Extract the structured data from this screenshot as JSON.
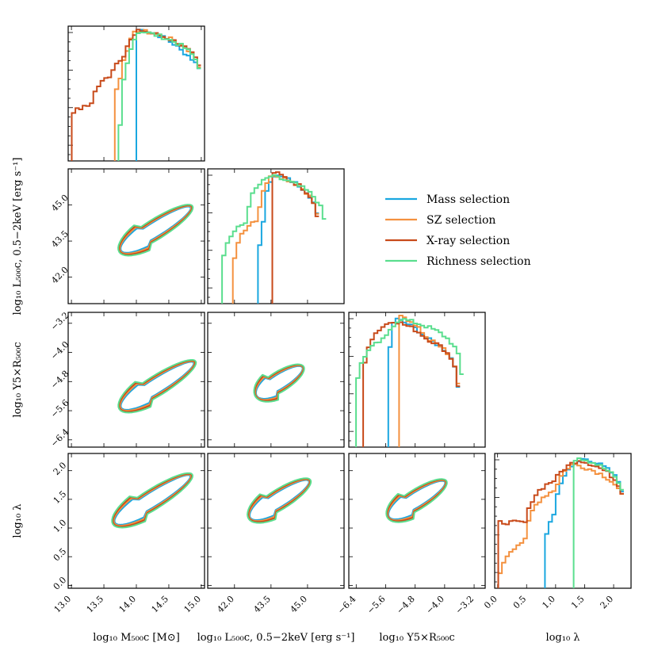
{
  "chart_data": {
    "type": "corner",
    "parameters": [
      {
        "key": "mass",
        "label": "log₁₀ M₅₀₀c [M⊙]",
        "range": [
          12.95,
          15.05
        ],
        "ticks": [
          "13.0",
          "13.5",
          "14.0",
          "14.5",
          "15.0"
        ],
        "tickvals": [
          13.0,
          13.5,
          14.0,
          14.5,
          15.0
        ]
      },
      {
        "key": "lum",
        "label": "log₁₀ L₅₀₀c, 0.5−2keV [erg s⁻¹]",
        "range": [
          40.9,
          46.5
        ],
        "ticks": [
          "42.0",
          "43.5",
          "45.0"
        ],
        "tickvals": [
          42.0,
          43.5,
          45.0
        ]
      },
      {
        "key": "ysz",
        "label": "log₁₀ Y5×R₅₀₀c",
        "range": [
          -6.6,
          -2.9
        ],
        "ticks": [
          "−6.4",
          "−5.6",
          "−4.8",
          "−4.0",
          "−3.2"
        ],
        "tickvals": [
          -6.4,
          -5.6,
          -4.8,
          -4.0,
          -3.2
        ]
      },
      {
        "key": "rich",
        "label": "log₁₀ λ",
        "range": [
          -0.05,
          2.3
        ],
        "ticks": [
          "0.0",
          "0.5",
          "1.0",
          "1.5",
          "2.0"
        ],
        "tickvals": [
          0.0,
          0.5,
          1.0,
          1.5,
          2.0
        ]
      }
    ],
    "series": [
      {
        "name": "Mass selection",
        "color": "#1aa7e0"
      },
      {
        "name": "SZ selection",
        "color": "#f4913f"
      },
      {
        "name": "X-ray selection",
        "color": "#c84a1a"
      },
      {
        "name": "Richness selection",
        "color": "#5ade8e"
      }
    ],
    "legend_position": "upper-right",
    "y_axis_labels": {
      "row1": "log₁₀ L₅₀₀c, 0.5−2keV [erg s⁻¹]",
      "row2": "log₁₀ Y5×R₅₀₀c",
      "row3": "log₁₀ λ"
    },
    "marginal_histograms": {
      "mass": {
        "note": "log-scaled counts, relative to peak",
        "Mass selection": [
          [
            14.0,
            1.0
          ],
          [
            14.1,
            0.95
          ],
          [
            14.3,
            0.72
          ],
          [
            14.5,
            0.45
          ],
          [
            14.7,
            0.22
          ],
          [
            14.9,
            0.1
          ],
          [
            14.97,
            0.07
          ]
        ],
        "SZ selection": [
          [
            13.65,
            0.002
          ],
          [
            13.75,
            0.03
          ],
          [
            13.85,
            0.2
          ],
          [
            13.95,
            0.6
          ],
          [
            14.0,
            0.95
          ],
          [
            14.3,
            0.72
          ],
          [
            14.97,
            0.07
          ]
        ],
        "X-ray selection": [
          [
            13.0,
            0.003
          ],
          [
            13.3,
            0.005
          ],
          [
            13.6,
            0.04
          ],
          [
            13.8,
            0.15
          ],
          [
            13.95,
            0.55
          ],
          [
            14.05,
            0.95
          ],
          [
            14.97,
            0.07
          ]
        ],
        "Richness selection": [
          [
            13.75,
            0.0005
          ],
          [
            13.85,
            0.05
          ],
          [
            13.95,
            0.4
          ],
          [
            14.05,
            0.9
          ],
          [
            14.97,
            0.07
          ]
        ]
      },
      "lum": {
        "Mass selection": [
          [
            43.0,
            0.0
          ],
          [
            43.2,
            0.03
          ],
          [
            43.6,
            0.8
          ],
          [
            44.2,
            0.6
          ],
          [
            45.5,
            0.003
          ]
        ],
        "SZ selection": [
          [
            42.0,
            0.002
          ],
          [
            43.0,
            0.04
          ],
          [
            43.6,
            0.85
          ],
          [
            45.5,
            0.003
          ]
        ],
        "X-ray selection": [
          [
            43.5,
            0.0
          ],
          [
            43.6,
            1.0
          ],
          [
            44.2,
            0.6
          ],
          [
            45.5,
            0.003
          ]
        ],
        "Richness selection": [
          [
            41.5,
            0.001
          ],
          [
            42.5,
            0.03
          ],
          [
            43.5,
            0.75
          ],
          [
            45.8,
            0.001
          ]
        ]
      },
      "ysz": {
        "Mass selection": [
          [
            -5.5,
            0.0
          ],
          [
            -5.35,
            0.8
          ],
          [
            -4.5,
            0.2
          ],
          [
            -3.6,
            0.001
          ]
        ],
        "SZ selection": [
          [
            -5.25,
            0.0
          ],
          [
            -5.2,
            1.0
          ],
          [
            -4.5,
            0.2
          ],
          [
            -3.6,
            0.001
          ]
        ],
        "X-ray selection": [
          [
            -6.2,
            0.003
          ],
          [
            -5.4,
            0.7
          ],
          [
            -4.5,
            0.2
          ],
          [
            -3.6,
            0.001
          ]
        ],
        "Richness selection": [
          [
            -6.4,
            0.001
          ],
          [
            -5.6,
            0.2
          ],
          [
            -5.2,
            0.8
          ],
          [
            -3.5,
            0.0005
          ]
        ]
      },
      "rich": {
        "Mass selection": [
          [
            0.8,
            0.0
          ],
          [
            1.0,
            0.02
          ],
          [
            1.3,
            0.5
          ],
          [
            1.5,
            0.9
          ],
          [
            2.2,
            0.03
          ]
        ],
        "SZ selection": [
          [
            0.0,
            0.0
          ],
          [
            0.5,
            0.003
          ],
          [
            1.0,
            0.1
          ],
          [
            1.3,
            0.6
          ],
          [
            2.2,
            0.03
          ]
        ],
        "X-ray selection": [
          [
            0.0,
            0.01
          ],
          [
            0.5,
            0.01
          ],
          [
            1.0,
            0.2
          ],
          [
            1.4,
            0.8
          ],
          [
            2.2,
            0.03
          ]
        ],
        "Richness selection": [
          [
            1.3,
            0.0
          ],
          [
            1.35,
            1.0
          ],
          [
            2.2,
            0.03
          ]
        ]
      }
    },
    "contours": {
      "description": "2D density contours for each parameter pair; elongated ellipses along a positive correlation",
      "mass_lum": {
        "center": [
          14.3,
          44.0
        ],
        "extent_x": [
          13.7,
          14.9
        ]
      },
      "mass_ysz": {
        "center": [
          14.3,
          -4.9
        ],
        "extent_x": [
          13.7,
          14.95
        ]
      },
      "lum_ysz": {
        "center": [
          43.8,
          -4.8
        ],
        "extent_x": [
          42.8,
          44.9
        ]
      },
      "mass_rich": {
        "center": [
          14.3,
          1.5
        ],
        "extent_x": [
          13.6,
          14.9
        ]
      },
      "lum_rich": {
        "center": [
          43.9,
          1.5
        ],
        "extent_x": [
          42.5,
          45.2
        ]
      },
      "ysz_rich": {
        "center": [
          -4.8,
          1.5
        ],
        "extent_x": [
          -5.6,
          -3.9
        ]
      }
    }
  }
}
